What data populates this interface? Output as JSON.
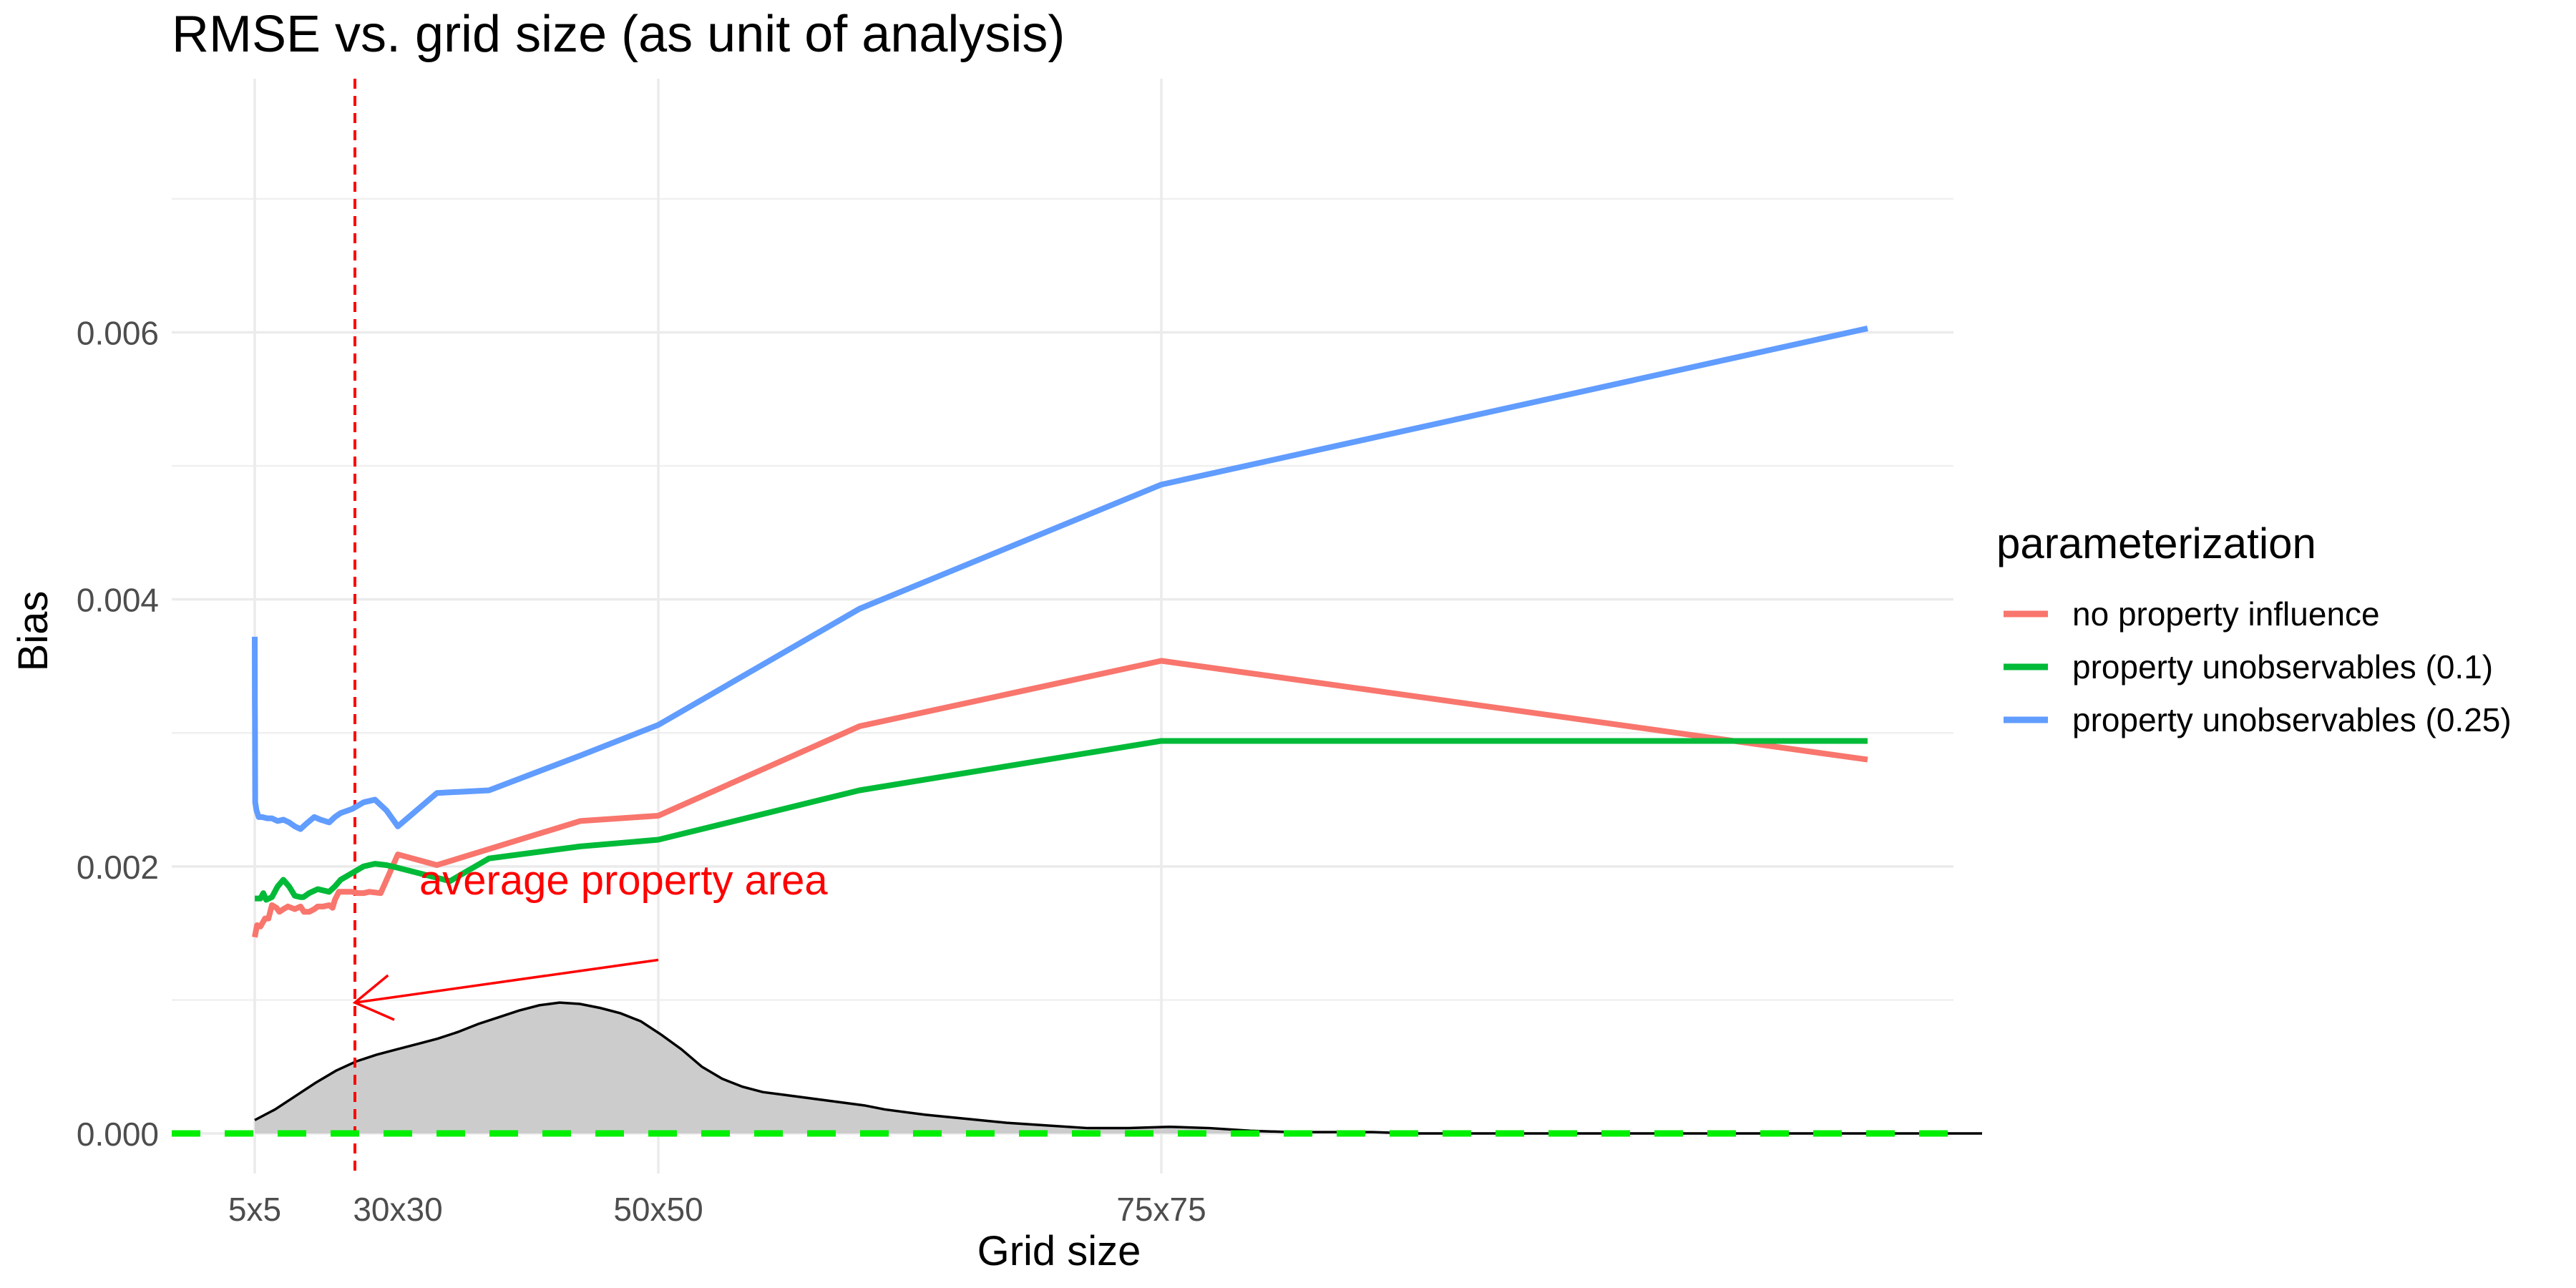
{
  "chart_data": {
    "type": "line",
    "title": "RMSE vs. grid size (as unit of analysis)",
    "xlabel": "Grid size",
    "ylabel": "Bias",
    "xlim": [
      1,
      90
    ],
    "ylim": [
      -0.0003,
      0.0079
    ],
    "x_ticks": [
      {
        "value": 5,
        "label": "5x5"
      },
      {
        "value": 30,
        "label": "30x30"
      },
      {
        "value": 50,
        "label": "50x50"
      },
      {
        "value": 75,
        "label": "75x75"
      }
    ],
    "x_grid": [
      5,
      50,
      75
    ],
    "y_ticks": [
      {
        "value": 0,
        "label": "0.000"
      },
      {
        "value": 0.002,
        "label": "0.002"
      },
      {
        "value": 0.004,
        "label": "0.004"
      },
      {
        "value": 0.006,
        "label": "0.006"
      }
    ],
    "y_minor_grid": [
      0.001,
      0.003,
      0.005,
      0.007
    ],
    "grid": true,
    "legend": {
      "title": "parameterization",
      "position": "right"
    },
    "series": [
      {
        "name": "no property influence",
        "color": "#F8766D",
        "x": [
          5,
          5.4,
          6,
          6.8,
          7.4,
          8,
          8.8,
          9.3,
          10,
          10.8,
          12,
          13,
          13.6,
          14.5,
          15.4,
          16,
          17,
          18,
          18.6,
          19,
          19.7,
          20.6,
          22,
          23,
          24,
          25,
          27,
          30,
          33,
          37,
          44,
          50,
          60,
          75,
          110
        ],
        "y": [
          0.00147,
          0.00156,
          0.00155,
          0.00161,
          0.00161,
          0.00171,
          0.00169,
          0.00166,
          0.00168,
          0.0017,
          0.00168,
          0.0017,
          0.00166,
          0.00166,
          0.00168,
          0.0017,
          0.0017,
          0.00171,
          0.00169,
          0.00175,
          0.00181,
          0.00181,
          0.00181,
          0.0018,
          0.0018,
          0.00181,
          0.0018,
          0.00209,
          0.00201,
          0.00213,
          0.00234,
          0.00238,
          0.00305,
          0.00354,
          0.0028
        ]
      },
      {
        "name": "property unobservables (0.1)",
        "color": "#00BA38",
        "x": [
          5,
          5.5,
          6,
          6.5,
          7,
          8,
          9,
          10,
          11,
          12,
          13,
          13.5,
          14.5,
          16,
          17,
          18,
          19,
          20,
          22,
          24,
          26,
          28,
          30,
          34,
          37,
          44,
          50,
          60,
          75,
          110
        ],
        "y": [
          0.00176,
          0.00176,
          0.00176,
          0.0018,
          0.00175,
          0.00177,
          0.00185,
          0.0019,
          0.00185,
          0.00178,
          0.00177,
          0.00177,
          0.0018,
          0.00183,
          0.00182,
          0.00181,
          0.00185,
          0.0019,
          0.00195,
          0.002,
          0.00202,
          0.00201,
          0.00199,
          0.00189,
          0.00206,
          0.00215,
          0.0022,
          0.00257,
          0.00294,
          0.00294
        ]
      },
      {
        "name": "property unobservables (0.25)",
        "color": "#619CFF",
        "x": [
          5,
          5.02,
          5.04,
          5.06,
          5.08,
          5.3,
          5.7,
          6.3,
          7.2,
          8,
          9,
          10,
          11,
          12,
          13,
          14,
          15.4,
          16.5,
          18,
          19,
          20,
          22,
          24,
          26,
          28,
          30,
          33,
          37,
          44,
          50,
          60,
          75,
          110
        ],
        "y": [
          0.00372,
          0.00325,
          0.0031,
          0.0028,
          0.00248,
          0.00242,
          0.00237,
          0.00237,
          0.00236,
          0.00236,
          0.00234,
          0.00235,
          0.00233,
          0.0023,
          0.00228,
          0.00232,
          0.00237,
          0.00235,
          0.00233,
          0.00237,
          0.0024,
          0.00243,
          0.00248,
          0.0025,
          0.00242,
          0.0023,
          0.00255,
          0.00257,
          0.00283,
          0.00306,
          0.00393,
          0.00486,
          0.00603
        ]
      }
    ],
    "density": {
      "fill": "#CCCCCC",
      "stroke": "#000000",
      "x": [
        5,
        6,
        7,
        8,
        9,
        10,
        11,
        12,
        13,
        14,
        15,
        16,
        17,
        18,
        19,
        20,
        21,
        22,
        23,
        24,
        25,
        26,
        27,
        28,
        29,
        30,
        31,
        32,
        33,
        34,
        35,
        36,
        38,
        40,
        42,
        44,
        46,
        48,
        50,
        52,
        54,
        56,
        58,
        60,
        62,
        66,
        70,
        75,
        80,
        85,
        90
      ],
      "y": [
        0.0001,
        0.00018,
        0.00028,
        0.00038,
        0.00047,
        0.00054,
        0.00059,
        0.00063,
        0.00067,
        0.00071,
        0.00076,
        0.00082,
        0.00087,
        0.00092,
        0.00096,
        0.00098,
        0.00097,
        0.00094,
        0.0009,
        0.00084,
        0.00074,
        0.00063,
        0.0005,
        0.00041,
        0.00035,
        0.00031,
        0.00029,
        0.00027,
        0.00025,
        0.00023,
        0.00021,
        0.00018,
        0.00014,
        0.00011,
        8e-05,
        6e-05,
        4e-05,
        4e-05,
        5e-05,
        4e-05,
        2e-05,
        1e-05,
        1e-05,
        1e-05,
        0.0,
        0.0,
        0.0,
        0.0,
        0.0,
        0.0,
        0.0
      ]
    },
    "reference_lines": [
      {
        "type": "vertical",
        "x": 22.5,
        "color": "#FF0000",
        "style": "dotted"
      },
      {
        "type": "horizontal",
        "y": 0,
        "color": "#00EE00",
        "style": "dashed"
      }
    ],
    "annotation": {
      "text": "average property area",
      "color": "#FF0000",
      "text_x": 25,
      "text_y": 0.00177,
      "arrow_from": [
        50,
        0.0013
      ],
      "arrow_to": [
        22.5,
        0.00098
      ]
    }
  }
}
